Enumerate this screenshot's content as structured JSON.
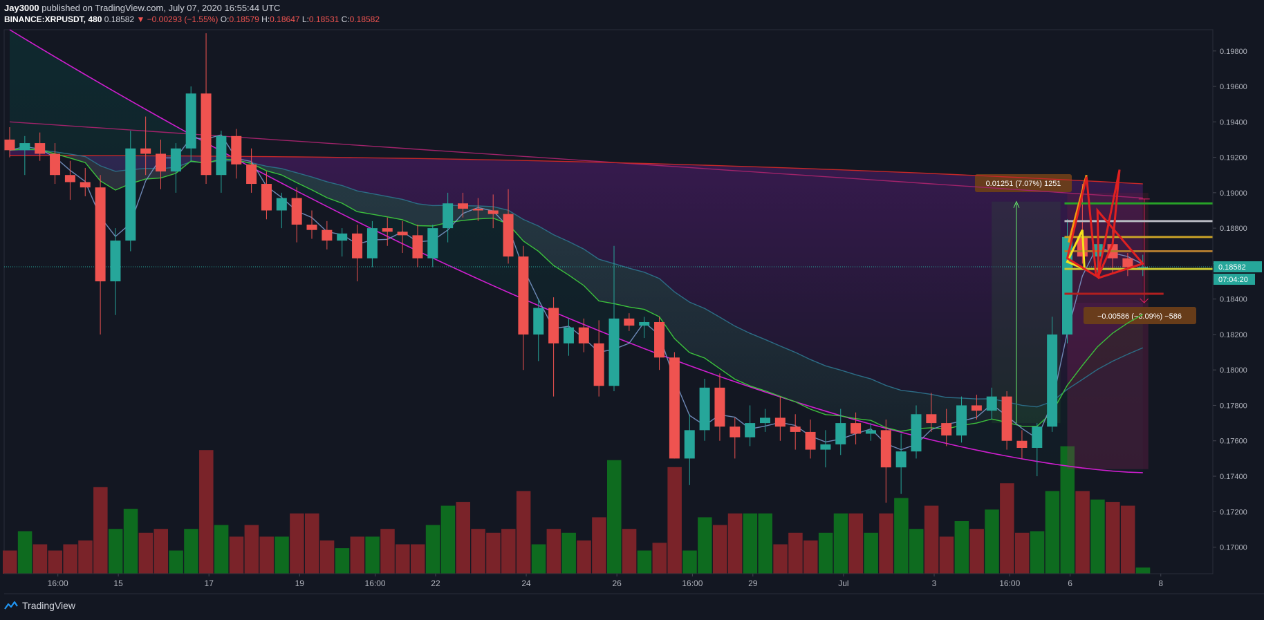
{
  "header": {
    "author": "Jay3000",
    "published_text": "published on TradingView.com, July 07, 2020 16:55:44 UTC",
    "symbol": "BINANCE:XRPUSDT, 480",
    "last": "0.18582",
    "change": "▼ −0.00293 (−1.55%)",
    "o_label": "O:",
    "o_value": "0.18579",
    "h_label": "H:",
    "h_value": "0.18647",
    "l_label": "L:",
    "l_value": "0.18531",
    "c_label": "C:",
    "c_value": "0.18582"
  },
  "brand": {
    "name": "TradingView"
  },
  "colors": {
    "up": "#26a69a",
    "down": "#ef5350",
    "vol_up": "#0e6b1f",
    "vol_down": "#7a2329",
    "bg": "#131722"
  },
  "chart_data": {
    "type": "candlestick",
    "symbol": "BINANCE:XRPUSDT",
    "interval": "480",
    "price_axis": {
      "ylim": [
        0.1685,
        0.1992
      ],
      "ticks": [
        "0.19800",
        "0.19600",
        "0.19400",
        "0.19200",
        "0.19000",
        "0.18800",
        "0.18600",
        "0.18400",
        "0.18200",
        "0.18000",
        "0.17800",
        "0.17600",
        "0.17400",
        "0.17200",
        "0.17000"
      ],
      "last_price_label": "0.18582",
      "countdown_label": "07:04:20"
    },
    "time_axis": {
      "labels": [
        {
          "text": "16:00",
          "bar": 2
        },
        {
          "text": "15",
          "bar": 6
        },
        {
          "text": "17",
          "bar": 12
        },
        {
          "text": "19",
          "bar": 18
        },
        {
          "text": "16:00",
          "bar": 23
        },
        {
          "text": "22",
          "bar": 27
        },
        {
          "text": "24",
          "bar": 33
        },
        {
          "text": "26",
          "bar": 39
        },
        {
          "text": "16:00",
          "bar": 44
        },
        {
          "text": "29",
          "bar": 48
        },
        {
          "text": "Jul",
          "bar": 54
        },
        {
          "text": "3",
          "bar": 60
        },
        {
          "text": "16:00",
          "bar": 65
        },
        {
          "text": "6",
          "bar": 69
        },
        {
          "text": "8",
          "bar": 75
        }
      ]
    },
    "candles": [
      {
        "o": 0.193,
        "h": 0.1937,
        "l": 0.192,
        "c": 0.1924,
        "v": 30
      },
      {
        "o": 0.1924,
        "h": 0.1932,
        "l": 0.191,
        "c": 0.1928,
        "v": 55
      },
      {
        "o": 0.1928,
        "h": 0.1934,
        "l": 0.1918,
        "c": 0.1922,
        "v": 38
      },
      {
        "o": 0.1922,
        "h": 0.1928,
        "l": 0.1905,
        "c": 0.191,
        "v": 30
      },
      {
        "o": 0.191,
        "h": 0.1918,
        "l": 0.1896,
        "c": 0.1906,
        "v": 38
      },
      {
        "o": 0.1906,
        "h": 0.1914,
        "l": 0.1898,
        "c": 0.1903,
        "v": 43
      },
      {
        "o": 0.1903,
        "h": 0.191,
        "l": 0.182,
        "c": 0.185,
        "v": 112
      },
      {
        "o": 0.185,
        "h": 0.188,
        "l": 0.1831,
        "c": 0.1873,
        "v": 58
      },
      {
        "o": 0.1873,
        "h": 0.1935,
        "l": 0.1867,
        "c": 0.1925,
        "v": 84
      },
      {
        "o": 0.1925,
        "h": 0.1943,
        "l": 0.191,
        "c": 0.1922,
        "v": 53
      },
      {
        "o": 0.1922,
        "h": 0.193,
        "l": 0.1902,
        "c": 0.1912,
        "v": 58
      },
      {
        "o": 0.1912,
        "h": 0.1928,
        "l": 0.19,
        "c": 0.1925,
        "v": 30
      },
      {
        "o": 0.1925,
        "h": 0.196,
        "l": 0.1918,
        "c": 0.1956,
        "v": 58
      },
      {
        "o": 0.1956,
        "h": 0.199,
        "l": 0.1905,
        "c": 0.191,
        "v": 160
      },
      {
        "o": 0.191,
        "h": 0.1935,
        "l": 0.19,
        "c": 0.1932,
        "v": 63
      },
      {
        "o": 0.1932,
        "h": 0.1936,
        "l": 0.1908,
        "c": 0.1916,
        "v": 48
      },
      {
        "o": 0.1916,
        "h": 0.1925,
        "l": 0.19,
        "c": 0.1905,
        "v": 63
      },
      {
        "o": 0.1905,
        "h": 0.1912,
        "l": 0.1885,
        "c": 0.189,
        "v": 48
      },
      {
        "o": 0.189,
        "h": 0.19,
        "l": 0.188,
        "c": 0.1897,
        "v": 48
      },
      {
        "o": 0.1897,
        "h": 0.1903,
        "l": 0.1872,
        "c": 0.1882,
        "v": 78
      },
      {
        "o": 0.1882,
        "h": 0.189,
        "l": 0.1874,
        "c": 0.1879,
        "v": 78
      },
      {
        "o": 0.1879,
        "h": 0.1884,
        "l": 0.1868,
        "c": 0.1873,
        "v": 43
      },
      {
        "o": 0.1873,
        "h": 0.188,
        "l": 0.1864,
        "c": 0.1877,
        "v": 33
      },
      {
        "o": 0.1877,
        "h": 0.1882,
        "l": 0.185,
        "c": 0.1863,
        "v": 48
      },
      {
        "o": 0.1863,
        "h": 0.1884,
        "l": 0.1858,
        "c": 0.188,
        "v": 48
      },
      {
        "o": 0.188,
        "h": 0.1886,
        "l": 0.187,
        "c": 0.1878,
        "v": 58
      },
      {
        "o": 0.1878,
        "h": 0.1884,
        "l": 0.1866,
        "c": 0.1876,
        "v": 38
      },
      {
        "o": 0.1876,
        "h": 0.1882,
        "l": 0.1858,
        "c": 0.1863,
        "v": 38
      },
      {
        "o": 0.1863,
        "h": 0.1882,
        "l": 0.1858,
        "c": 0.188,
        "v": 63
      },
      {
        "o": 0.188,
        "h": 0.19,
        "l": 0.1872,
        "c": 0.1894,
        "v": 88
      },
      {
        "o": 0.1894,
        "h": 0.19,
        "l": 0.1886,
        "c": 0.1891,
        "v": 93
      },
      {
        "o": 0.1891,
        "h": 0.1897,
        "l": 0.1884,
        "c": 0.189,
        "v": 58
      },
      {
        "o": 0.189,
        "h": 0.1899,
        "l": 0.188,
        "c": 0.1888,
        "v": 53
      },
      {
        "o": 0.1888,
        "h": 0.1902,
        "l": 0.186,
        "c": 0.1864,
        "v": 58
      },
      {
        "o": 0.1864,
        "h": 0.187,
        "l": 0.18,
        "c": 0.182,
        "v": 107
      },
      {
        "o": 0.182,
        "h": 0.184,
        "l": 0.1805,
        "c": 0.1835,
        "v": 38
      },
      {
        "o": 0.1835,
        "h": 0.1841,
        "l": 0.1785,
        "c": 0.1815,
        "v": 58
      },
      {
        "o": 0.1815,
        "h": 0.1829,
        "l": 0.1808,
        "c": 0.1824,
        "v": 53
      },
      {
        "o": 0.1824,
        "h": 0.1829,
        "l": 0.181,
        "c": 0.1815,
        "v": 43
      },
      {
        "o": 0.1815,
        "h": 0.1828,
        "l": 0.1785,
        "c": 0.1791,
        "v": 73
      },
      {
        "o": 0.1791,
        "h": 0.187,
        "l": 0.1788,
        "c": 0.1829,
        "v": 147
      },
      {
        "o": 0.1829,
        "h": 0.1832,
        "l": 0.1822,
        "c": 0.1825,
        "v": 58
      },
      {
        "o": 0.1825,
        "h": 0.183,
        "l": 0.1818,
        "c": 0.1827,
        "v": 30
      },
      {
        "o": 0.1827,
        "h": 0.183,
        "l": 0.18,
        "c": 0.1807,
        "v": 40
      },
      {
        "o": 0.1807,
        "h": 0.181,
        "l": 0.175,
        "c": 0.175,
        "v": 138
      },
      {
        "o": 0.175,
        "h": 0.1775,
        "l": 0.1735,
        "c": 0.1766,
        "v": 30
      },
      {
        "o": 0.1766,
        "h": 0.1795,
        "l": 0.176,
        "c": 0.179,
        "v": 73
      },
      {
        "o": 0.179,
        "h": 0.1798,
        "l": 0.176,
        "c": 0.1768,
        "v": 63
      },
      {
        "o": 0.1768,
        "h": 0.1773,
        "l": 0.175,
        "c": 0.1762,
        "v": 78
      },
      {
        "o": 0.1762,
        "h": 0.178,
        "l": 0.1757,
        "c": 0.177,
        "v": 78
      },
      {
        "o": 0.177,
        "h": 0.1778,
        "l": 0.1765,
        "c": 0.1773,
        "v": 78
      },
      {
        "o": 0.1773,
        "h": 0.1785,
        "l": 0.176,
        "c": 0.1768,
        "v": 38
      },
      {
        "o": 0.1768,
        "h": 0.1775,
        "l": 0.1755,
        "c": 0.1765,
        "v": 53
      },
      {
        "o": 0.1765,
        "h": 0.1772,
        "l": 0.175,
        "c": 0.1755,
        "v": 43
      },
      {
        "o": 0.1755,
        "h": 0.1766,
        "l": 0.1745,
        "c": 0.1758,
        "v": 53
      },
      {
        "o": 0.1758,
        "h": 0.1778,
        "l": 0.1752,
        "c": 0.177,
        "v": 78
      },
      {
        "o": 0.177,
        "h": 0.1776,
        "l": 0.1758,
        "c": 0.1764,
        "v": 78
      },
      {
        "o": 0.1764,
        "h": 0.177,
        "l": 0.176,
        "c": 0.1766,
        "v": 53
      },
      {
        "o": 0.1766,
        "h": 0.1772,
        "l": 0.1725,
        "c": 0.1745,
        "v": 78
      },
      {
        "o": 0.1745,
        "h": 0.1764,
        "l": 0.173,
        "c": 0.1754,
        "v": 98
      },
      {
        "o": 0.1754,
        "h": 0.178,
        "l": 0.175,
        "c": 0.1775,
        "v": 58
      },
      {
        "o": 0.1775,
        "h": 0.1787,
        "l": 0.1765,
        "c": 0.177,
        "v": 88
      },
      {
        "o": 0.177,
        "h": 0.1778,
        "l": 0.1757,
        "c": 0.1763,
        "v": 48
      },
      {
        "o": 0.1763,
        "h": 0.1785,
        "l": 0.1759,
        "c": 0.178,
        "v": 68
      },
      {
        "o": 0.178,
        "h": 0.1786,
        "l": 0.1772,
        "c": 0.1777,
        "v": 58
      },
      {
        "o": 0.1777,
        "h": 0.179,
        "l": 0.1772,
        "c": 0.1785,
        "v": 83
      },
      {
        "o": 0.1785,
        "h": 0.1788,
        "l": 0.1755,
        "c": 0.176,
        "v": 117
      },
      {
        "o": 0.176,
        "h": 0.1766,
        "l": 0.175,
        "c": 0.1756,
        "v": 53
      },
      {
        "o": 0.1756,
        "h": 0.177,
        "l": 0.174,
        "c": 0.1768,
        "v": 55
      },
      {
        "o": 0.1768,
        "h": 0.183,
        "l": 0.1765,
        "c": 0.182,
        "v": 107
      },
      {
        "o": 0.182,
        "h": 0.1885,
        "l": 0.1815,
        "c": 0.1875,
        "v": 165
      },
      {
        "o": 0.1875,
        "h": 0.1905,
        "l": 0.186,
        "c": 0.1864,
        "v": 107
      },
      {
        "o": 0.1864,
        "h": 0.1888,
        "l": 0.1855,
        "c": 0.1871,
        "v": 96
      },
      {
        "o": 0.1871,
        "h": 0.188,
        "l": 0.1855,
        "c": 0.1863,
        "v": 93
      },
      {
        "o": 0.1863,
        "h": 0.1866,
        "l": 0.1853,
        "c": 0.1858,
        "v": 88
      },
      {
        "o": 0.1858,
        "h": 0.1865,
        "l": 0.1853,
        "c": 0.1858,
        "v": 8
      }
    ],
    "annotations": {
      "long_position": {
        "label": "0.01251 (7.07%) 1251",
        "target": 0.1895,
        "stop": 0.177
      },
      "short_position": {
        "label": "−0.00586 (−3.09%) −586",
        "top": 0.18965,
        "bottom": 0.18379
      },
      "horizontal_levels": [
        {
          "price": 0.1894,
          "color": "#27a327"
        },
        {
          "price": 0.1884,
          "color": "#b8bac2"
        },
        {
          "price": 0.1875,
          "color": "#c9a227"
        },
        {
          "price": 0.1867,
          "color": "#b07a2f"
        },
        {
          "price": 0.1857,
          "color": "#c8c832"
        },
        {
          "price": 0.1843,
          "color": "#b21f1f"
        }
      ]
    }
  }
}
